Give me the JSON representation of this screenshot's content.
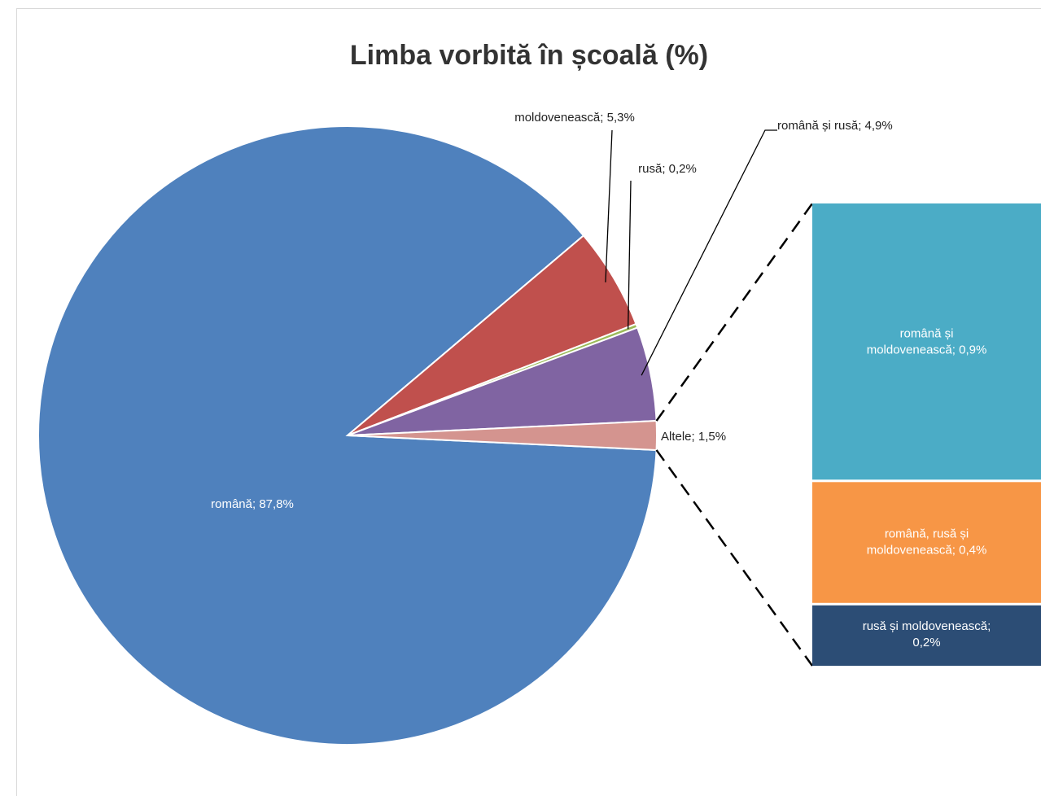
{
  "chart_data": {
    "type": "pie-of-bar",
    "title": "Limba vorbită în școală (%)",
    "values": [
      87.8,
      5.3,
      0.2,
      4.9,
      1.5
    ],
    "value_labels": [
      "română; 87,8%",
      "moldovenească; 5,3%",
      "rusă; 0,2%",
      "română și rusă; 4,9%",
      "Altele; 1,5%"
    ],
    "colors": [
      "#4f81bd",
      "#c0504d",
      "#9bbb59",
      "#8064a2",
      "#d4948f"
    ],
    "secondary": {
      "values": [
        0.9,
        0.4,
        0.2
      ],
      "value_labels": [
        "română și\nmoldovenească; 0,9%",
        "română, rusă și\nmoldovenească; 0,4%",
        "rusă și moldovenească;\n0,2%"
      ],
      "colors": [
        "#4bacc6",
        "#f79646",
        "#2c4d75"
      ]
    }
  }
}
